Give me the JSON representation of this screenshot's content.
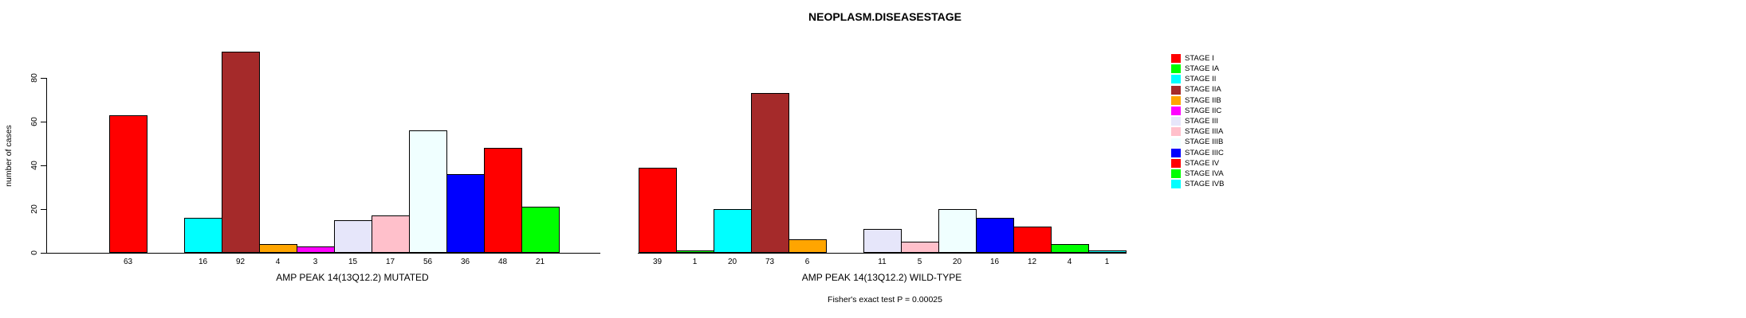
{
  "title": "NEOPLASM.DISEASESTAGE",
  "chart_data": {
    "type": "bar",
    "title": "NEOPLASM.DISEASESTAGE",
    "ylabel": "number of cases",
    "xlabel": "",
    "ylim": [
      0,
      80
    ],
    "yticks": [
      "0",
      "20",
      "40",
      "60",
      "80"
    ],
    "grid": false,
    "legend_position": "right",
    "categories": [
      "STAGE I",
      "STAGE IA",
      "STAGE II",
      "STAGE IIA",
      "STAGE IIB",
      "STAGE IIC",
      "STAGE III",
      "STAGE IIIA",
      "STAGE IIIB",
      "STAGE IIIC",
      "STAGE IV",
      "STAGE IVA",
      "STAGE IVB"
    ],
    "colors": [
      "#FF0000",
      "#00FF00",
      "#00FFFF",
      "#A52A2A",
      "#FFA500",
      "#FF00FF",
      "#E6E6FA",
      "#FFC0CB",
      "#F0FFFF",
      "#0000FF",
      "#FF0000",
      "#00FF00",
      "#00FFFF"
    ],
    "series": [
      {
        "name": "AMP PEAK 14(13Q12.2) MUTATED",
        "values": [
          63,
          0,
          16,
          92,
          4,
          3,
          15,
          17,
          56,
          36,
          48,
          21,
          0
        ]
      },
      {
        "name": "AMP PEAK 14(13Q12.2) WILD-TYPE",
        "values": [
          39,
          1,
          20,
          73,
          6,
          0,
          11,
          5,
          20,
          16,
          12,
          4,
          1
        ]
      }
    ],
    "value_labels": "shown under each nonzero bar",
    "annotation": "Fisher's exact test P = 0.00025"
  }
}
